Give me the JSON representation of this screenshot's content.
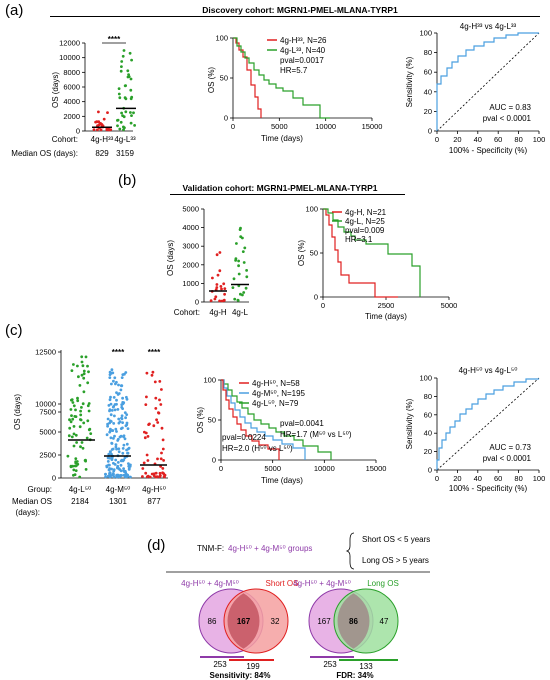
{
  "panel_labels": {
    "a": "(a)",
    "b": "(b)",
    "c": "(c)",
    "d": "(d)"
  },
  "titles": {
    "discovery": "Discovery cohort: MGRN1-PMEL-MLANA-TYRP1",
    "validation": "Validation cohort: MGRN1-PMEL-MLANA-TYRP1"
  },
  "colors": {
    "red": "#e02020",
    "green": "#2aa02a",
    "blue": "#4a9fe0",
    "purple": "#8e3aa8",
    "crimson": "#b0102a"
  },
  "a": {
    "scatter": {
      "ylabel": "OS (days)",
      "yticks": [
        "0",
        "2000",
        "4000",
        "6000",
        "8000",
        "10000",
        "12000"
      ],
      "groups": [
        "4g-H³³",
        "4g-L³³"
      ],
      "row1_label": "Cohort:",
      "row2_label": "Median OS (days):",
      "medians": [
        "829",
        "3159"
      ],
      "significance": "****"
    },
    "km": {
      "ylabel": "OS (%)",
      "xlabel": "Time (days)",
      "yticks": [
        "0",
        "50",
        "100"
      ],
      "xticks": [
        "0",
        "5000",
        "10000",
        "15000"
      ],
      "legend": [
        "4g-H³³, N=26",
        "4g-L³³, N=40"
      ],
      "stats": [
        "pval=0.0017",
        "HR=5.7"
      ]
    },
    "roc": {
      "title": "4g-H³³ vs 4g-L³³",
      "ylabel": "Sensitivity (%)",
      "xlabel": "100% - Specificity (%)",
      "ticks": [
        "0",
        "20",
        "40",
        "60",
        "80",
        "100"
      ],
      "auc": "AUC = 0.83",
      "pval": "pval < 0.0001"
    }
  },
  "b": {
    "scatter": {
      "ylabel": "OS (days)",
      "yticks": [
        "0",
        "1000",
        "2000",
        "3000",
        "4000",
        "5000"
      ],
      "row_label": "Cohort:",
      "groups": [
        "4g-H",
        "4g-L"
      ]
    },
    "km": {
      "ylabel": "OS (%)",
      "xlabel": "Time (days)",
      "yticks": [
        "0",
        "50",
        "100"
      ],
      "xticks": [
        "0",
        "2500",
        "5000"
      ],
      "legend": [
        "4g-H, N=21",
        "4g-L, N=25"
      ],
      "stats": [
        "pval=0.009",
        "HR=3.1"
      ]
    }
  },
  "c": {
    "scatter": {
      "ylabel": "OS (days)",
      "yticks": [
        "0",
        "2500",
        "5000",
        "7500",
        "10000",
        "12500"
      ],
      "row1_label": "Group:",
      "row2_label": "Median OS",
      "row3_label": "(days):",
      "groups": [
        "4g-L⁵⁰",
        "4g-M⁵⁰",
        "4g-H⁵⁰"
      ],
      "medians": [
        "2184",
        "1301",
        "877"
      ],
      "significance": [
        "****",
        "****"
      ]
    },
    "km": {
      "ylabel": "OS (%)",
      "xlabel": "Time (days)",
      "yticks": [
        "0",
        "50",
        "100"
      ],
      "xticks": [
        "0",
        "5000",
        "10000",
        "15000"
      ],
      "legend": [
        "4g-H⁵⁰, N=58",
        "4g-M⁵⁰, N=195",
        "4g-L⁵⁰, N=79"
      ],
      "stats_top": [
        "pval=0.0041",
        "HR=1.7 (M⁵⁰ vs L⁵⁰)"
      ],
      "stats_bottom": [
        "pval=0.0224",
        "HR=2.0 (H⁵⁰ vs L⁵⁰)"
      ]
    },
    "roc": {
      "title": "4g-H⁵⁰ vs 4g-L⁵⁰",
      "ylabel": "Sensitivity (%)",
      "xlabel": "100% - Specificity (%)",
      "ticks": [
        "0",
        "20",
        "40",
        "60",
        "80",
        "100"
      ],
      "auc": "AUC = 0.73",
      "pval": "pval < 0.0001"
    }
  },
  "d": {
    "tnm_label": "TNM-F:",
    "groups_label": "4g-H⁵⁰ + 4g-M⁵⁰ groups",
    "short_def": "Short OS < 5 years",
    "long_def": "Long OS > 5 years",
    "venn1": {
      "left_title": "4g-H⁵⁰ + 4g-M⁵⁰",
      "right_title": "Short OS",
      "left": "86",
      "overlap": "167",
      "right": "32",
      "left_total": "253",
      "right_total": "199",
      "metric": "Sensitivity: 84%"
    },
    "venn2": {
      "left_title": "4g-H⁵⁰ + 4g-M⁵⁰",
      "right_title": "Long OS",
      "left": "167",
      "overlap": "86",
      "right": "47",
      "left_total": "253",
      "right_total": "133",
      "metric": "FDR: 34%"
    }
  }
}
